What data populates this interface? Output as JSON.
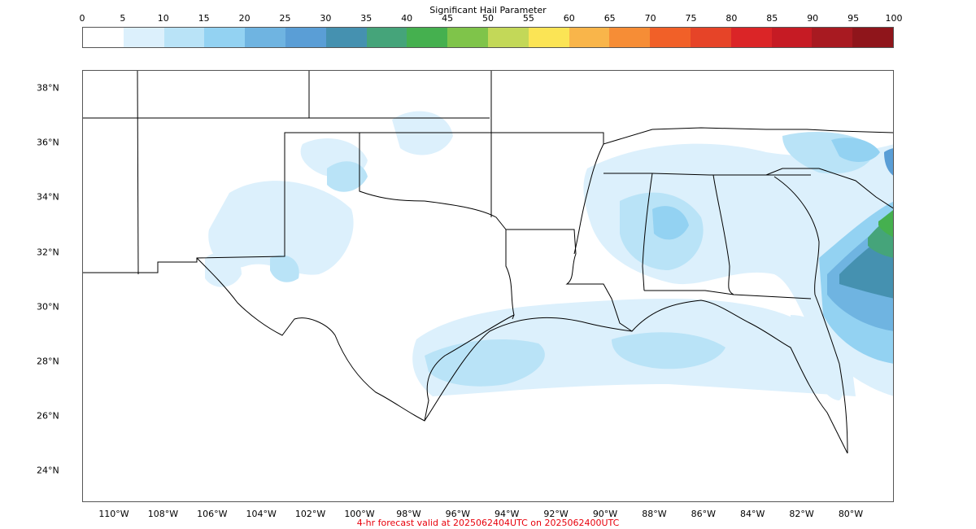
{
  "colorbar": {
    "title": "Significant Hail Parameter",
    "ticks": [
      "0",
      "5",
      "10",
      "15",
      "20",
      "25",
      "30",
      "35",
      "40",
      "45",
      "50",
      "55",
      "60",
      "65",
      "70",
      "75",
      "80",
      "85",
      "90",
      "95",
      "100"
    ],
    "colors": [
      "#ffffff",
      "#dcf0fc",
      "#b9e3f7",
      "#93d2f2",
      "#6fb4e1",
      "#5a9ed6",
      "#4591b0",
      "#45a47a",
      "#45b04f",
      "#7fc44a",
      "#c3d858",
      "#fbe455",
      "#f9b54a",
      "#f68d36",
      "#f16028",
      "#e64428",
      "#db2527",
      "#c61b24",
      "#a81a21",
      "#8f151b"
    ]
  },
  "map": {
    "lat_labels": [
      "38°N",
      "36°N",
      "34°N",
      "32°N",
      "30°N",
      "28°N",
      "26°N",
      "24°N"
    ],
    "lon_labels": [
      "110°W",
      "108°W",
      "106°W",
      "104°W",
      "102°W",
      "100°W",
      "98°W",
      "96°W",
      "94°W",
      "92°W",
      "90°W",
      "88°W",
      "86°W",
      "84°W",
      "82°W",
      "80°W"
    ]
  },
  "footer": {
    "text": "4-hr forecast valid at 2025062404UTC on 2025062400UTC",
    "color": "#e8000b"
  }
}
